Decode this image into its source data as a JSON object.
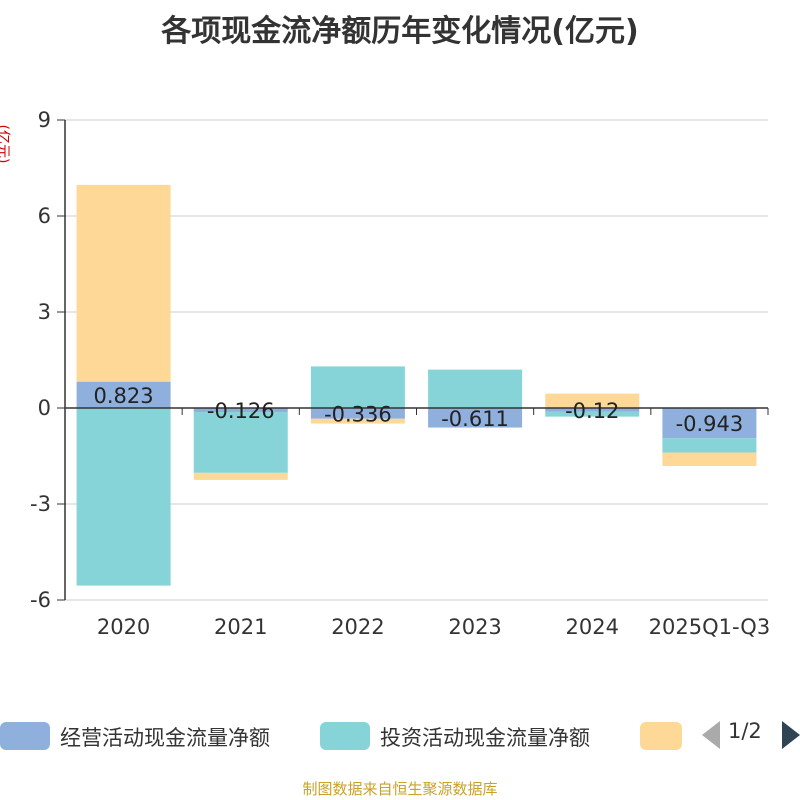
{
  "chart_data": {
    "type": "bar",
    "stacked": true,
    "title": "各项现金流净额历年变化情况(亿元)",
    "ylabel": "(亿元)",
    "ylim": [
      -6,
      9
    ],
    "yticks": [
      9,
      6,
      3,
      0,
      -3,
      -6
    ],
    "grid": true,
    "legend_position": "bottom",
    "categories": [
      "2020",
      "2021",
      "2022",
      "2023",
      "2024",
      "2025Q1-Q3"
    ],
    "series": [
      {
        "name": "经营活动现金流量净额",
        "color": "#8fb0dc",
        "values": [
          0.823,
          -0.126,
          -0.336,
          -0.611,
          -0.12,
          -0.943
        ]
      },
      {
        "name": "投资活动现金流量净额",
        "color": "#86d4d8",
        "values": [
          -5.55,
          -1.9,
          1.3,
          1.2,
          -0.15,
          -0.45
        ]
      },
      {
        "name": "",
        "color": "#fdd897",
        "values": [
          6.15,
          -0.22,
          -0.15,
          0.0,
          0.45,
          -0.42
        ]
      }
    ],
    "data_labels": [
      "0.823",
      "-0.126",
      "-0.336",
      "-0.611",
      "-0.12",
      "-0.943"
    ]
  },
  "legend": {
    "items": [
      {
        "label": "经营活动现金流量净额",
        "color": "#8fb0dc"
      },
      {
        "label": "投资活动现金流量净额",
        "color": "#86d4d8"
      },
      {
        "label": "",
        "color": "#fdd897"
      }
    ],
    "pager": "1/2"
  },
  "source_text": "制图数据来自恒生聚源数据库"
}
